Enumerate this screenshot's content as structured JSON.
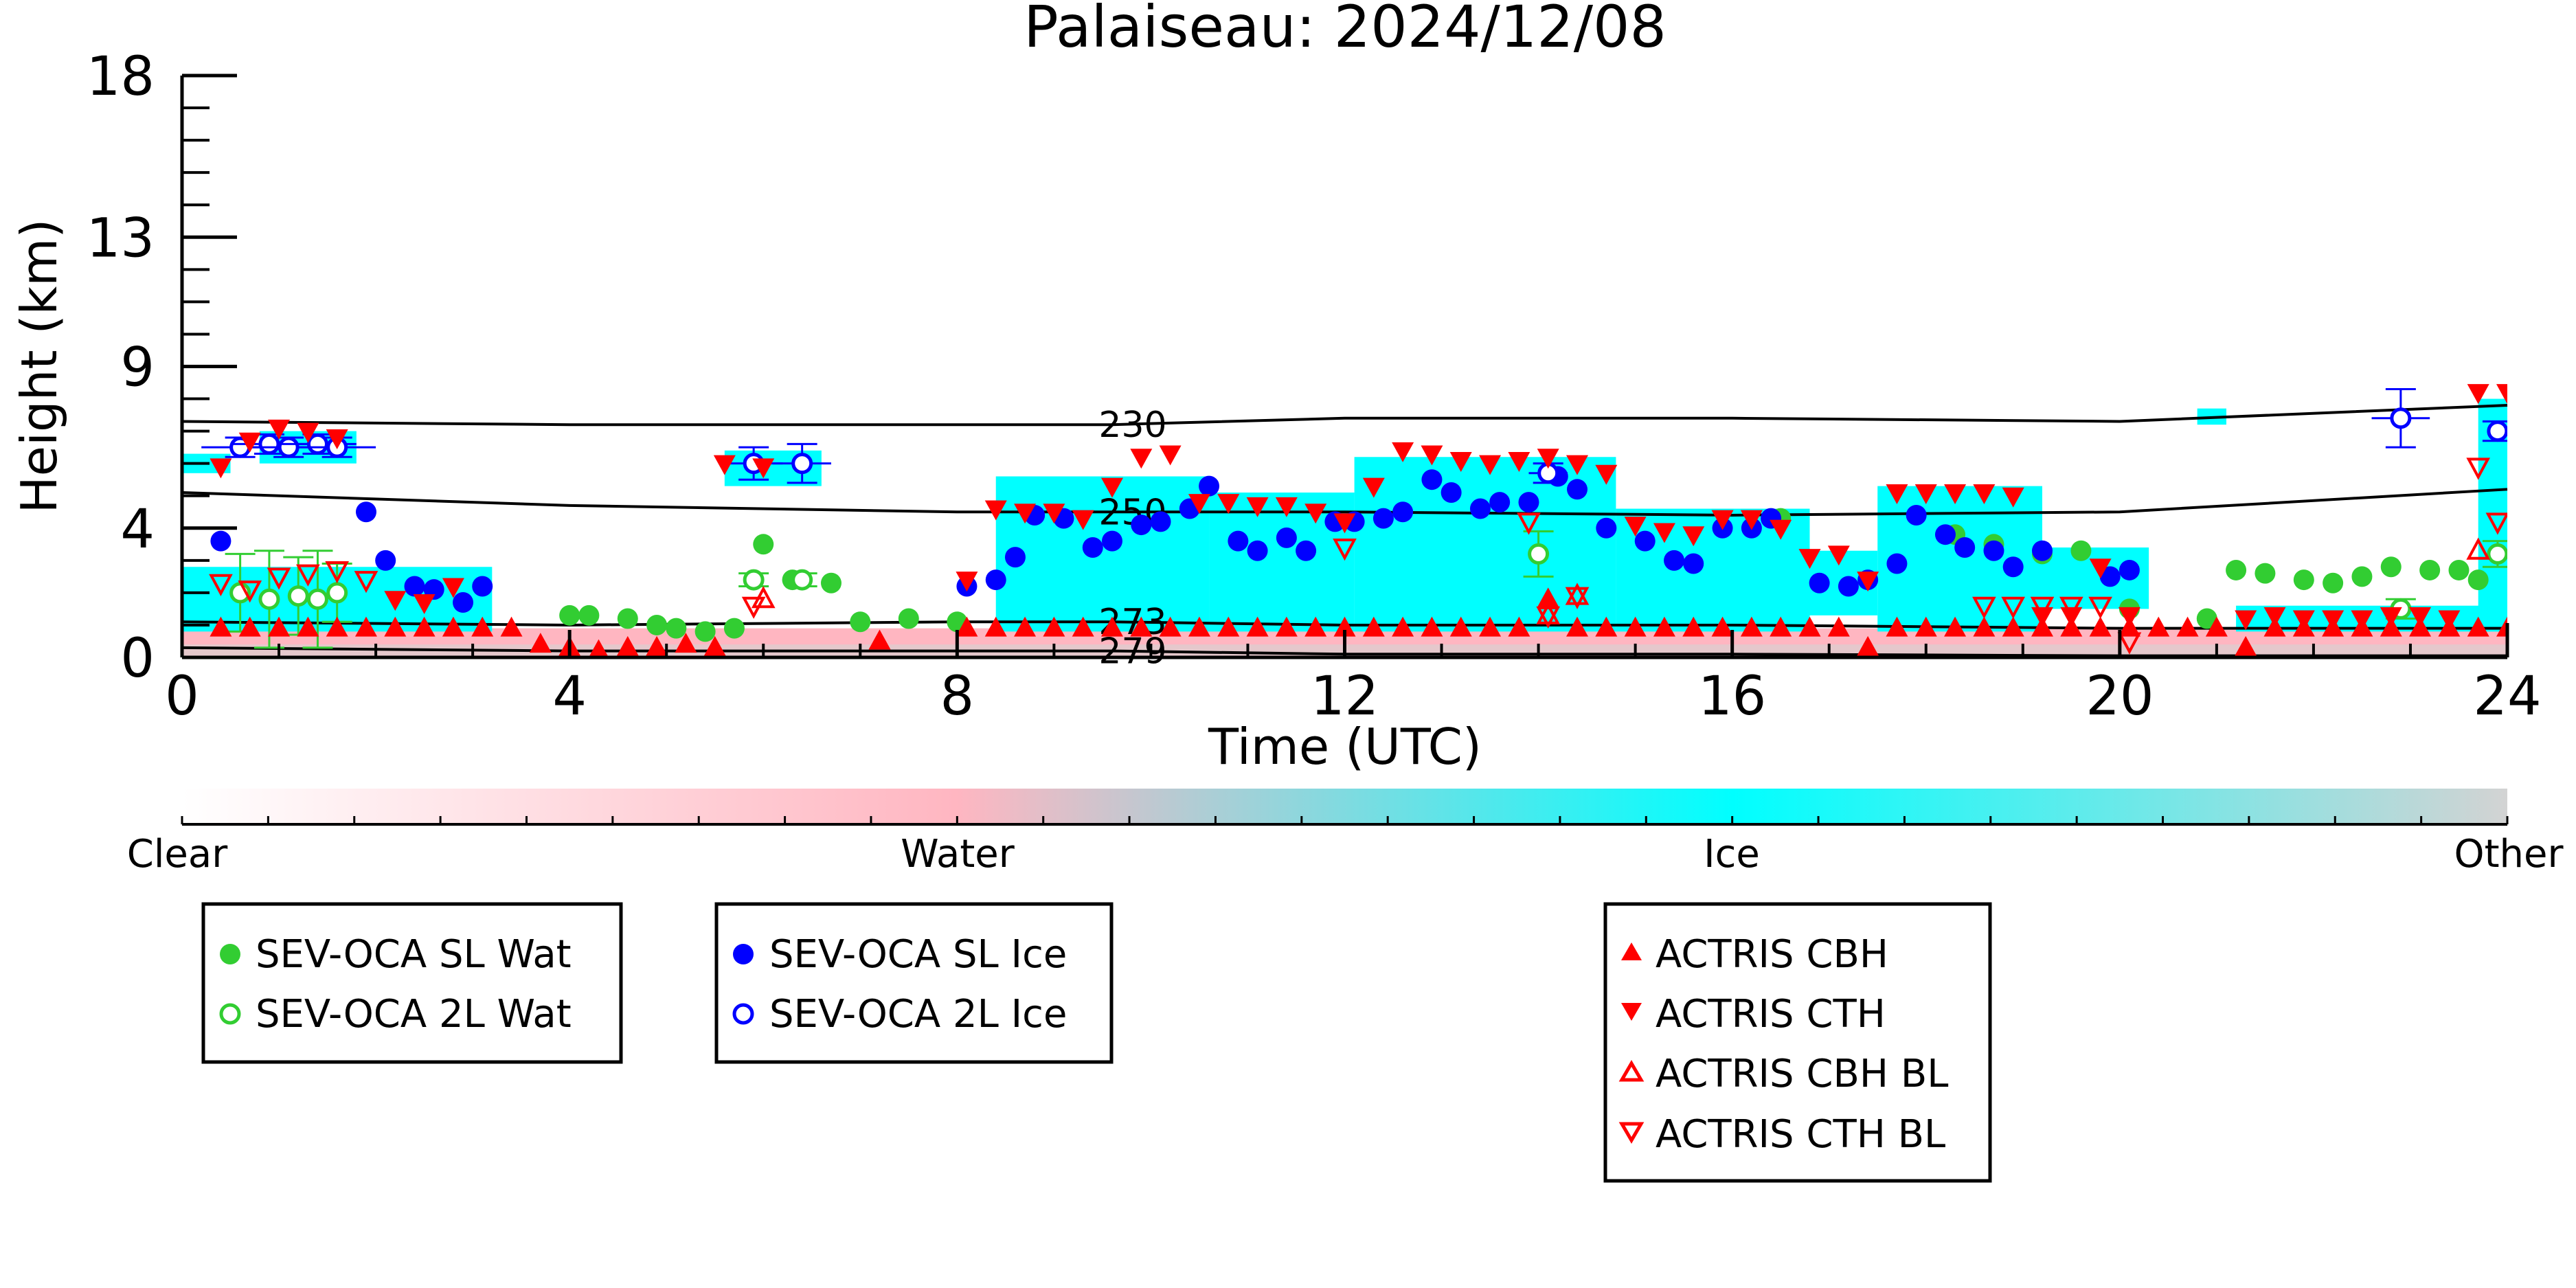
{
  "chart_data": {
    "type": "scatter",
    "title": "Palaiseau: 2024/12/08",
    "xlabel": "Time (UTC)",
    "ylabel": "Height (km)",
    "xlim": [
      0,
      24
    ],
    "ylim": [
      0,
      18
    ],
    "xticks": [
      0,
      4,
      8,
      12,
      16,
      20,
      24
    ],
    "yticks": [
      0,
      4,
      9,
      13,
      18
    ],
    "ytick_labels": [
      "0",
      "4",
      "9",
      "13",
      "18"
    ],
    "grid": false,
    "background_classification": {
      "description_colors": {
        "Clear": "#ffffff",
        "Water": "#ffb6c1",
        "Ice": "#00ffff",
        "Other": "#d3d3d3"
      },
      "ice_regions": [
        {
          "x": [
            0.0,
            0.5
          ],
          "y": [
            5.7,
            6.3
          ]
        },
        {
          "x": [
            0.8,
            1.8
          ],
          "y": [
            6.0,
            7.0
          ]
        },
        {
          "x": [
            0.0,
            3.2
          ],
          "y": [
            0.8,
            2.8
          ]
        },
        {
          "x": [
            5.6,
            6.6
          ],
          "y": [
            5.3,
            6.4
          ]
        },
        {
          "x": [
            8.4,
            10.6
          ],
          "y": [
            0.8,
            5.6
          ]
        },
        {
          "x": [
            10.6,
            12.1
          ],
          "y": [
            0.8,
            5.1
          ]
        },
        {
          "x": [
            12.1,
            14.8
          ],
          "y": [
            0.8,
            6.2
          ]
        },
        {
          "x": [
            14.8,
            16.8
          ],
          "y": [
            0.8,
            4.6
          ]
        },
        {
          "x": [
            16.8,
            17.5
          ],
          "y": [
            1.3,
            3.3
          ]
        },
        {
          "x": [
            17.5,
            19.2
          ],
          "y": [
            0.8,
            5.3
          ]
        },
        {
          "x": [
            19.2,
            20.3
          ],
          "y": [
            1.5,
            3.4
          ]
        },
        {
          "x": [
            21.2,
            24.0
          ],
          "y": [
            0.8,
            1.6
          ]
        },
        {
          "x": [
            23.7,
            24.0
          ],
          "y": [
            0.8,
            8.0
          ]
        },
        {
          "x": [
            20.8,
            21.1
          ],
          "y": [
            7.2,
            7.7
          ]
        }
      ],
      "water_band": {
        "y": [
          0.0,
          0.9
        ]
      },
      "other_band": {
        "y": [
          0.0,
          0.4
        ]
      }
    },
    "isotherms": [
      {
        "label": "230",
        "x": [
          0,
          4,
          9.6,
          12,
          16,
          20,
          24
        ],
        "y": [
          7.3,
          7.2,
          7.2,
          7.4,
          7.4,
          7.3,
          7.8
        ],
        "label_x": 9.6
      },
      {
        "label": "250",
        "x": [
          0,
          4,
          8,
          9.6,
          12,
          16,
          20,
          24
        ],
        "y": [
          5.1,
          4.7,
          4.5,
          4.5,
          4.5,
          4.4,
          4.5,
          5.2
        ],
        "label_x": 9.6
      },
      {
        "label": "273",
        "x": [
          0,
          4,
          8,
          9.6,
          12,
          16,
          20,
          24
        ],
        "y": [
          1.1,
          1.0,
          1.1,
          1.1,
          1.0,
          1.0,
          0.9,
          0.9
        ],
        "label_x": 9.6
      },
      {
        "label": "279",
        "x": [
          0,
          4,
          8,
          9.6,
          12,
          16,
          20,
          24
        ],
        "y": [
          0.3,
          0.2,
          0.2,
          0.2,
          0.1,
          0.1,
          0.05,
          0.05
        ],
        "label_x": 9.6
      }
    ],
    "series": [
      {
        "name": "SEV-OCA SL Wat",
        "marker": "circle-filled",
        "color": "#32cd32",
        "x": [
          4.0,
          4.2,
          4.6,
          4.9,
          5.1,
          5.4,
          5.7,
          6.0,
          6.3,
          6.7,
          7.0,
          7.5,
          8.0,
          16.5,
          18.3,
          18.7,
          19.2,
          19.6,
          20.1,
          20.9,
          21.2,
          21.5,
          21.9,
          22.2,
          22.5,
          22.8,
          23.2,
          23.5,
          23.7
        ],
        "y": [
          1.3,
          1.3,
          1.2,
          1.0,
          0.9,
          0.8,
          0.9,
          3.5,
          2.4,
          2.3,
          1.1,
          1.2,
          1.1,
          4.3,
          3.8,
          3.5,
          3.2,
          3.3,
          1.5,
          1.2,
          2.7,
          2.6,
          2.4,
          2.3,
          2.5,
          2.8,
          2.7,
          2.7,
          2.4
        ]
      },
      {
        "name": "SEV-OCA 2L Wat",
        "marker": "circle-open",
        "color": "#32cd32",
        "x": [
          0.6,
          0.9,
          1.2,
          1.4,
          1.6,
          5.9,
          6.4,
          14.0,
          22.9,
          23.9
        ],
        "y": [
          2.0,
          1.8,
          1.9,
          1.8,
          2.0,
          2.4,
          2.4,
          3.2,
          1.5,
          3.2
        ],
        "yerr": [
          1.2,
          1.5,
          1.2,
          1.5,
          0.9,
          0.2,
          0.2,
          0.7,
          0.3,
          0.4
        ]
      },
      {
        "name": "SEV-OCA SL Ice",
        "marker": "circle-filled",
        "color": "#0000ff",
        "x": [
          0.4,
          1.9,
          2.1,
          2.4,
          2.6,
          2.9,
          3.1,
          8.1,
          8.4,
          8.6,
          8.8,
          9.1,
          9.4,
          9.6,
          9.9,
          10.1,
          10.4,
          10.6,
          10.9,
          11.1,
          11.4,
          11.6,
          11.9,
          12.1,
          12.4,
          12.6,
          12.9,
          13.1,
          13.4,
          13.6,
          13.9,
          14.2,
          14.4,
          14.7,
          15.1,
          15.4,
          15.6,
          15.9,
          16.2,
          16.4,
          16.9,
          17.2,
          17.4,
          17.7,
          17.9,
          18.2,
          18.4,
          18.7,
          18.9,
          19.2,
          19.9,
          20.1
        ],
        "y": [
          3.6,
          4.5,
          3.0,
          2.2,
          2.1,
          1.7,
          2.2,
          2.2,
          2.4,
          3.1,
          4.4,
          4.3,
          3.4,
          3.6,
          4.1,
          4.2,
          4.6,
          5.3,
          3.6,
          3.3,
          3.7,
          3.3,
          4.2,
          4.2,
          4.3,
          4.5,
          5.5,
          5.1,
          4.6,
          4.8,
          4.8,
          5.6,
          5.2,
          4.0,
          3.6,
          3.0,
          2.9,
          4.0,
          4.0,
          4.3,
          2.3,
          2.2,
          2.4,
          2.9,
          4.4,
          3.8,
          3.4,
          3.3,
          2.8,
          3.3,
          2.5,
          2.7
        ]
      },
      {
        "name": "SEV-OCA 2L Ice",
        "marker": "circle-open",
        "color": "#0000ff",
        "x": [
          0.6,
          0.9,
          1.1,
          1.4,
          1.6,
          5.9,
          6.4,
          14.1,
          22.9,
          23.9
        ],
        "y": [
          6.5,
          6.6,
          6.5,
          6.6,
          6.5,
          6.0,
          6.0,
          5.7,
          7.4,
          7.0
        ],
        "yerr": [
          0.3,
          0.3,
          0.3,
          0.3,
          0.3,
          0.5,
          0.6,
          0.3,
          0.9,
          0.3
        ],
        "xerr": [
          0.4,
          0.4,
          0.4,
          0.4,
          0.4,
          0.3,
          0.3,
          0.2,
          0.3,
          0.1
        ]
      },
      {
        "name": "ACTRIS CBH",
        "marker": "triangle-up-filled",
        "color": "#ff0000",
        "x": [
          0.4,
          0.7,
          1.0,
          1.3,
          1.6,
          1.9,
          2.2,
          2.5,
          2.8,
          3.1,
          3.4,
          3.7,
          4.0,
          4.3,
          4.6,
          4.9,
          5.2,
          5.5,
          7.2,
          8.1,
          8.4,
          8.7,
          9.0,
          9.3,
          9.6,
          9.9,
          10.2,
          10.5,
          10.8,
          11.1,
          11.4,
          11.7,
          12.0,
          12.3,
          12.6,
          12.9,
          13.2,
          13.5,
          13.8,
          14.1,
          14.4,
          14.7,
          15.0,
          15.3,
          15.6,
          15.9,
          16.2,
          16.5,
          16.8,
          17.1,
          17.4,
          17.7,
          18.0,
          18.3,
          18.6,
          18.9,
          19.2,
          19.5,
          19.8,
          20.1,
          20.4,
          20.7,
          21.0,
          21.3,
          21.6,
          21.9,
          22.2,
          22.5,
          22.8,
          23.1,
          23.4,
          23.7,
          24.0
        ],
        "y": [
          0.9,
          0.9,
          0.9,
          0.9,
          0.9,
          0.9,
          0.9,
          0.9,
          0.9,
          0.9,
          0.9,
          0.4,
          0.3,
          0.2,
          0.3,
          0.3,
          0.4,
          0.3,
          0.5,
          0.9,
          0.9,
          0.9,
          0.9,
          0.9,
          0.9,
          0.9,
          0.9,
          0.9,
          0.9,
          0.9,
          0.9,
          0.9,
          0.9,
          0.9,
          0.9,
          0.9,
          0.9,
          0.9,
          0.9,
          1.8,
          0.9,
          0.9,
          0.9,
          0.9,
          0.9,
          0.9,
          0.9,
          0.9,
          0.9,
          0.9,
          0.3,
          0.9,
          0.9,
          0.9,
          0.9,
          0.9,
          0.9,
          0.9,
          0.9,
          0.9,
          0.9,
          0.9,
          0.9,
          0.3,
          0.9,
          0.9,
          0.9,
          0.9,
          0.9,
          0.9,
          0.9,
          0.9,
          0.9
        ]
      },
      {
        "name": "ACTRIS CTH",
        "marker": "triangle-down-filled",
        "color": "#ff0000",
        "x": [
          0.4,
          0.7,
          1.0,
          1.3,
          1.6,
          2.2,
          2.5,
          2.8,
          5.6,
          6.0,
          8.1,
          8.4,
          8.7,
          9.0,
          9.3,
          9.6,
          9.9,
          10.2,
          10.5,
          10.8,
          11.1,
          11.4,
          11.7,
          12.0,
          12.3,
          12.6,
          12.9,
          13.2,
          13.5,
          13.8,
          14.1,
          14.4,
          14.7,
          15.0,
          15.3,
          15.6,
          15.9,
          16.2,
          16.5,
          16.8,
          17.1,
          17.4,
          17.7,
          18.0,
          18.3,
          18.6,
          18.9,
          19.2,
          19.5,
          19.8,
          20.1,
          21.3,
          21.6,
          21.9,
          22.2,
          22.5,
          22.8,
          23.1,
          23.4,
          23.7,
          24.0
        ],
        "y": [
          5.9,
          6.7,
          7.1,
          7.0,
          6.8,
          1.8,
          1.7,
          2.2,
          6.0,
          5.9,
          2.4,
          4.6,
          4.5,
          4.5,
          4.3,
          5.3,
          6.2,
          6.3,
          4.8,
          4.8,
          4.7,
          4.7,
          4.5,
          4.2,
          5.3,
          6.4,
          6.3,
          6.1,
          6.0,
          6.1,
          6.2,
          6.0,
          5.7,
          4.1,
          3.9,
          3.8,
          4.3,
          4.3,
          4.0,
          3.1,
          3.2,
          2.4,
          5.1,
          5.1,
          5.1,
          5.1,
          5.0,
          1.3,
          1.3,
          2.8,
          1.3,
          1.2,
          1.3,
          1.2,
          1.2,
          1.2,
          1.3,
          1.3,
          1.2,
          8.2,
          8.2
        ]
      },
      {
        "name": "ACTRIS CBH BL",
        "marker": "triangle-up-open",
        "color": "#ff0000",
        "x": [
          6.0,
          14.1,
          14.4,
          23.7
        ],
        "y": [
          1.8,
          1.3,
          1.9,
          3.3
        ],
        "note": "open markers"
      },
      {
        "name": "ACTRIS CTH BL",
        "marker": "triangle-down-open",
        "color": "#ff0000",
        "x": [
          0.4,
          0.7,
          1.0,
          1.3,
          1.6,
          1.9,
          5.9,
          12.0,
          13.9,
          14.1,
          14.4,
          18.6,
          18.9,
          19.2,
          19.5,
          19.8,
          20.1,
          23.7,
          23.9
        ],
        "y": [
          2.3,
          2.1,
          2.5,
          2.6,
          2.7,
          2.4,
          1.6,
          3.4,
          4.2,
          1.3,
          1.9,
          1.6,
          1.6,
          1.6,
          1.6,
          1.6,
          0.5,
          5.9,
          4.2
        ]
      }
    ],
    "colorbar": {
      "ticks": [
        "Clear",
        "Water",
        "Ice",
        "Other"
      ],
      "colors": [
        "#ffffff",
        "#ffb6c1",
        "#00ffff",
        "#d3d3d3"
      ]
    },
    "legends": [
      {
        "entries": [
          "SEV-OCA SL Wat",
          "SEV-OCA 2L Wat"
        ]
      },
      {
        "entries": [
          "SEV-OCA SL Ice",
          "SEV-OCA 2L Ice"
        ]
      },
      {
        "entries": [
          "ACTRIS CBH",
          "ACTRIS CTH",
          "ACTRIS CBH BL",
          "ACTRIS CTH BL"
        ]
      }
    ]
  }
}
